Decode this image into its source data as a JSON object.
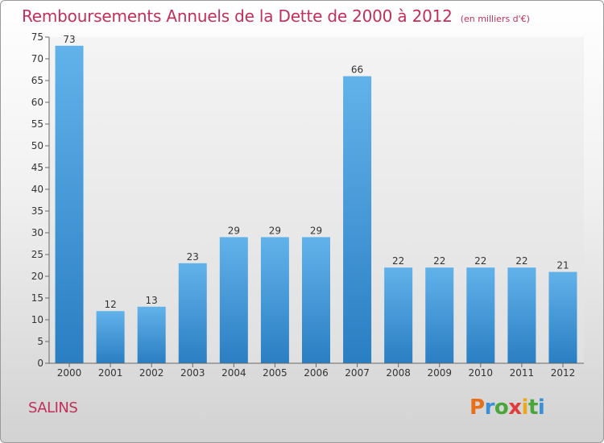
{
  "header": {
    "title": "Remboursements Annuels de la Dette de 2000 à 2012",
    "unit": "(en milliers d'€)"
  },
  "footer": {
    "town": "SALINS",
    "logo": "Proxiti"
  },
  "colors": {
    "title": "#c0305a",
    "bar_top": "#62b2ea",
    "bar_bottom": "#2a7ec2",
    "logo_letters": [
      "#e8701a",
      "#3a8fd6",
      "#4aa53a",
      "#e23b3b",
      "#e8a91a",
      "#4aa53a",
      "#3a8fd6"
    ]
  },
  "chart_data": {
    "type": "bar",
    "title": "Remboursements Annuels de la Dette de 2000 à 2012",
    "categories": [
      "2000",
      "2001",
      "2002",
      "2003",
      "2004",
      "2005",
      "2006",
      "2007",
      "2008",
      "2009",
      "2010",
      "2011",
      "2012"
    ],
    "values": [
      73,
      12,
      13,
      23,
      29,
      29,
      29,
      66,
      22,
      22,
      22,
      22,
      21
    ],
    "ylim": [
      0,
      75
    ],
    "yticks": [
      0,
      5,
      10,
      15,
      20,
      25,
      30,
      35,
      40,
      45,
      50,
      55,
      60,
      65,
      70,
      75
    ],
    "grid": false,
    "data_labels": true
  }
}
